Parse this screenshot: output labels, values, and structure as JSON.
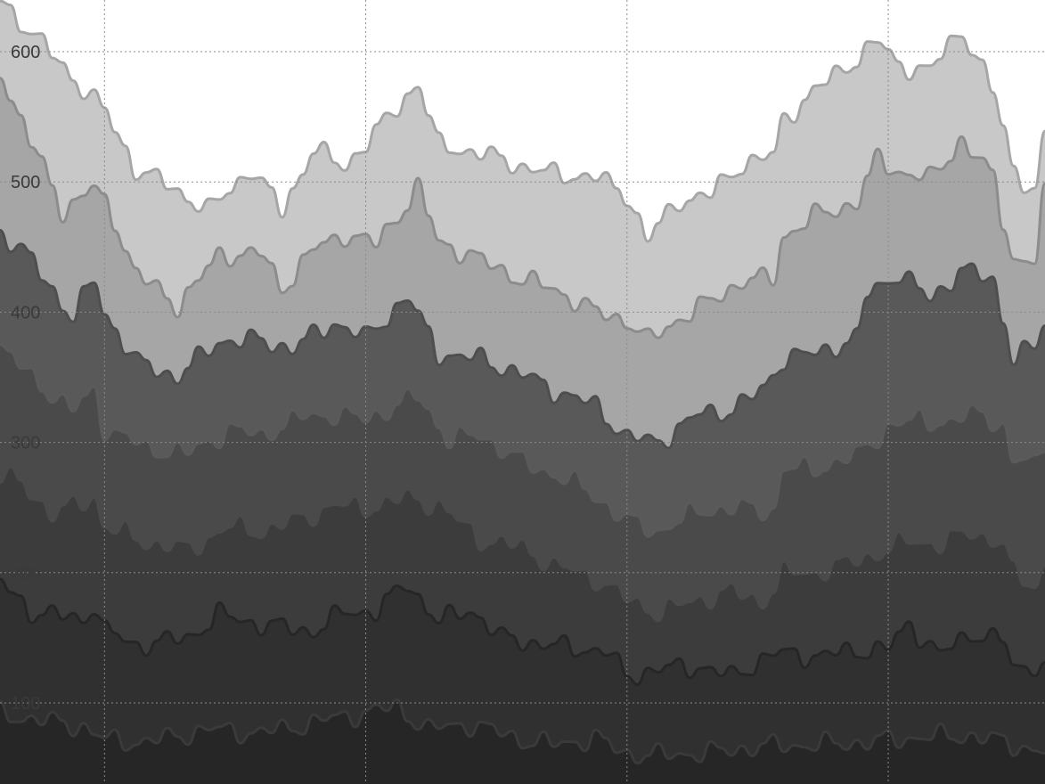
{
  "chart_data": {
    "type": "area",
    "stacked": true,
    "title": "",
    "xlabel": "",
    "ylabel": "",
    "ylim": [
      0,
      600
    ],
    "y_ticks": [
      100,
      200,
      300,
      400,
      500,
      600
    ],
    "y_tick_labels": [
      "100",
      "200",
      "300",
      "400",
      "500",
      "600"
    ],
    "x_range": [
      0,
      100
    ],
    "x_gridlines": [
      10,
      35,
      60,
      85
    ],
    "grid": true,
    "legend": "none",
    "n_points": 101,
    "series_fill_colors": [
      "#262626",
      "#303030",
      "#3c3c3c",
      "#4a4a4a",
      "#595959",
      "#a6a6a6",
      "#c8c8c8"
    ],
    "series_line_colors": [
      "#3a3a3a",
      "#262626",
      "#4a4a4a",
      "#5a5a5a",
      "#4e4e4e",
      "#8c8c8c",
      "#a6a6a6"
    ],
    "top_anchors": [
      [
        [
          0,
          92
        ],
        [
          3,
          88
        ],
        [
          8,
          82
        ],
        [
          10,
          72
        ],
        [
          14,
          70
        ],
        [
          20,
          80
        ],
        [
          25,
          77
        ],
        [
          33,
          90
        ],
        [
          38,
          97
        ],
        [
          41,
          80
        ],
        [
          45,
          84
        ],
        [
          50,
          72
        ],
        [
          53,
          68
        ],
        [
          57,
          73
        ],
        [
          60,
          61
        ],
        [
          63,
          60
        ],
        [
          68,
          62
        ],
        [
          73,
          67
        ],
        [
          78,
          68
        ],
        [
          83,
          70
        ],
        [
          88,
          74
        ],
        [
          93,
          75
        ],
        [
          96,
          70
        ],
        [
          100,
          62
        ]
      ],
      [
        [
          0,
          193
        ],
        [
          3,
          170
        ],
        [
          8,
          164
        ],
        [
          9,
          176
        ],
        [
          10,
          156
        ],
        [
          13,
          144
        ],
        [
          18,
          150
        ],
        [
          21,
          168
        ],
        [
          25,
          160
        ],
        [
          30,
          155
        ],
        [
          33,
          170
        ],
        [
          36,
          170
        ],
        [
          39,
          192
        ],
        [
          42,
          162
        ],
        [
          45,
          172
        ],
        [
          48,
          150
        ],
        [
          52,
          145
        ],
        [
          55,
          142
        ],
        [
          58,
          140
        ],
        [
          60,
          120
        ],
        [
          63,
          126
        ],
        [
          67,
          128
        ],
        [
          70,
          120
        ],
        [
          74,
          138
        ],
        [
          78,
          136
        ],
        [
          82,
          140
        ],
        [
          85,
          142
        ],
        [
          87,
          160
        ],
        [
          90,
          137
        ],
        [
          93,
          154
        ],
        [
          96,
          148
        ],
        [
          97,
          126
        ],
        [
          99,
          130
        ],
        [
          100,
          126
        ]
      ],
      [
        [
          0,
          274
        ],
        [
          2,
          270
        ],
        [
          5,
          245
        ],
        [
          9,
          258
        ],
        [
          10,
          236
        ],
        [
          14,
          224
        ],
        [
          18,
          218
        ],
        [
          22,
          236
        ],
        [
          25,
          232
        ],
        [
          29,
          242
        ],
        [
          32,
          252
        ],
        [
          35,
          250
        ],
        [
          39,
          258
        ],
        [
          42,
          252
        ],
        [
          46,
          226
        ],
        [
          50,
          220
        ],
        [
          53,
          206
        ],
        [
          57,
          196
        ],
        [
          60,
          180
        ],
        [
          63,
          170
        ],
        [
          67,
          180
        ],
        [
          70,
          186
        ],
        [
          73,
          178
        ],
        [
          75,
          200
        ],
        [
          78,
          200
        ],
        [
          82,
          210
        ],
        [
          85,
          218
        ],
        [
          87,
          225
        ],
        [
          90,
          222
        ],
        [
          93,
          232
        ],
        [
          96,
          222
        ],
        [
          97,
          200
        ],
        [
          99,
          190
        ],
        [
          100,
          205
        ]
      ],
      [
        [
          0,
          375
        ],
        [
          3,
          350
        ],
        [
          7,
          325
        ],
        [
          9,
          340
        ],
        [
          10,
          312
        ],
        [
          14,
          296
        ],
        [
          18,
          292
        ],
        [
          22,
          310
        ],
        [
          25,
          306
        ],
        [
          29,
          320
        ],
        [
          32,
          322
        ],
        [
          35,
          318
        ],
        [
          40,
          336
        ],
        [
          43,
          302
        ],
        [
          46,
          306
        ],
        [
          50,
          285
        ],
        [
          53,
          276
        ],
        [
          56,
          265
        ],
        [
          60,
          240
        ],
        [
          63,
          232
        ],
        [
          67,
          248
        ],
        [
          71,
          250
        ],
        [
          74,
          248
        ],
        [
          75,
          280
        ],
        [
          78,
          280
        ],
        [
          82,
          290
        ],
        [
          85,
          312
        ],
        [
          88,
          318
        ],
        [
          91,
          315
        ],
        [
          94,
          325
        ],
        [
          96,
          310
        ],
        [
          97,
          285
        ],
        [
          99,
          285
        ],
        [
          100,
          302
        ]
      ],
      [
        [
          0,
          462
        ],
        [
          3,
          440
        ],
        [
          7,
          395
        ],
        [
          9,
          425
        ],
        [
          10,
          400
        ],
        [
          13,
          362
        ],
        [
          17,
          350
        ],
        [
          21,
          378
        ],
        [
          25,
          378
        ],
        [
          28,
          372
        ],
        [
          32,
          392
        ],
        [
          35,
          380
        ],
        [
          39,
          412
        ],
        [
          42,
          368
        ],
        [
          46,
          364
        ],
        [
          50,
          352
        ],
        [
          53,
          340
        ],
        [
          57,
          328
        ],
        [
          60,
          304
        ],
        [
          63,
          300
        ],
        [
          67,
          322
        ],
        [
          70,
          325
        ],
        [
          73,
          340
        ],
        [
          75,
          365
        ],
        [
          78,
          368
        ],
        [
          82,
          380
        ],
        [
          83,
          414
        ],
        [
          86,
          430
        ],
        [
          89,
          410
        ],
        [
          92,
          432
        ],
        [
          95,
          425
        ],
        [
          97,
          365
        ],
        [
          99,
          372
        ],
        [
          100,
          392
        ]
      ],
      [
        [
          0,
          585
        ],
        [
          3,
          530
        ],
        [
          6,
          478
        ],
        [
          9,
          496
        ],
        [
          11,
          470
        ],
        [
          13,
          430
        ],
        [
          17,
          405
        ],
        [
          21,
          444
        ],
        [
          25,
          445
        ],
        [
          27,
          418
        ],
        [
          30,
          448
        ],
        [
          33,
          460
        ],
        [
          36,
          452
        ],
        [
          40,
          495
        ],
        [
          42,
          454
        ],
        [
          46,
          440
        ],
        [
          50,
          425
        ],
        [
          53,
          418
        ],
        [
          57,
          400
        ],
        [
          60,
          394
        ],
        [
          62,
          378
        ],
        [
          65,
          395
        ],
        [
          68,
          408
        ],
        [
          71,
          424
        ],
        [
          74,
          426
        ],
        [
          75,
          458
        ],
        [
          78,
          474
        ],
        [
          82,
          484
        ],
        [
          84,
          518
        ],
        [
          86,
          508
        ],
        [
          89,
          502
        ],
        [
          92,
          532
        ],
        [
          95,
          504
        ],
        [
          97,
          440
        ],
        [
          99,
          438
        ],
        [
          100,
          490
        ]
      ],
      [
        [
          0,
          640
        ],
        [
          3,
          615
        ],
        [
          7,
          580
        ],
        [
          10,
          555
        ],
        [
          13,
          510
        ],
        [
          16,
          498
        ],
        [
          20,
          478
        ],
        [
          24,
          510
        ],
        [
          27,
          478
        ],
        [
          30,
          525
        ],
        [
          33,
          512
        ],
        [
          36,
          538
        ],
        [
          40,
          576
        ],
        [
          42,
          528
        ],
        [
          46,
          522
        ],
        [
          50,
          512
        ],
        [
          53,
          506
        ],
        [
          57,
          504
        ],
        [
          60,
          490
        ],
        [
          62,
          456
        ],
        [
          65,
          486
        ],
        [
          68,
          490
        ],
        [
          71,
          514
        ],
        [
          74,
          520
        ],
        [
          75,
          548
        ],
        [
          78,
          570
        ],
        [
          82,
          595
        ],
        [
          84,
          608
        ],
        [
          86,
          590
        ],
        [
          89,
          585
        ],
        [
          92,
          618
        ],
        [
          95,
          570
        ],
        [
          97,
          512
        ],
        [
          99,
          490
        ],
        [
          100,
          535
        ]
      ]
    ]
  }
}
